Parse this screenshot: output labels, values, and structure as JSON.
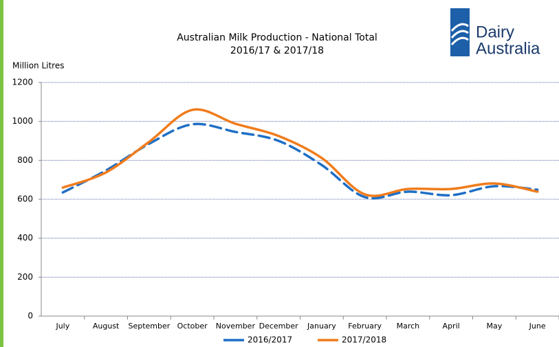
{
  "chart_data": {
    "type": "line",
    "title": "Australian Milk Production - National Total",
    "subtitle": "2016/17 & 2017/18",
    "y_label": "Million Litres",
    "logo": [
      "Dairy",
      "Australia"
    ],
    "categories": [
      "July",
      "August",
      "September",
      "October",
      "November",
      "December",
      "January",
      "February",
      "March",
      "April",
      "May",
      "June"
    ],
    "series": [
      {
        "name": "2016/2017",
        "color": "#1f6fc5",
        "line_style": "dashed",
        "values": [
          635,
          748,
          885,
          985,
          946,
          900,
          776,
          611,
          639,
          621,
          667,
          649
        ]
      },
      {
        "name": "2017/2018",
        "color": "#f07c1c",
        "line_style": "solid",
        "values": [
          660,
          738,
          895,
          1059,
          988,
          925,
          812,
          625,
          653,
          653,
          681,
          639
        ]
      }
    ],
    "ylim": [
      0,
      1200
    ],
    "yticks": [
      0,
      200,
      400,
      600,
      800,
      1000,
      1200
    ],
    "grid": true,
    "legend": "bottom"
  }
}
